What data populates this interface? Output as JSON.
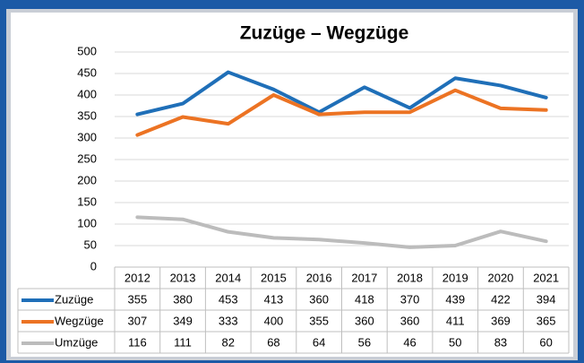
{
  "chart_data": {
    "type": "line",
    "title": "Zuzüge – Wegzüge",
    "categories": [
      "2012",
      "2013",
      "2014",
      "2015",
      "2016",
      "2017",
      "2018",
      "2019",
      "2020",
      "2021"
    ],
    "series": [
      {
        "name": "Zuzüge",
        "color": "#1f6fb8",
        "values": [
          355,
          380,
          453,
          413,
          360,
          418,
          370,
          439,
          422,
          394
        ]
      },
      {
        "name": "Wegzüge",
        "color": "#ec7323",
        "values": [
          307,
          349,
          333,
          400,
          355,
          360,
          360,
          411,
          369,
          365
        ]
      },
      {
        "name": "Umzüge",
        "color": "#bcbcbc",
        "values": [
          116,
          111,
          82,
          68,
          64,
          56,
          46,
          50,
          83,
          60
        ]
      }
    ],
    "ylim": [
      0,
      500
    ],
    "yticks": [
      0,
      50,
      100,
      150,
      200,
      250,
      300,
      350,
      400,
      450,
      500
    ],
    "grid": true
  }
}
